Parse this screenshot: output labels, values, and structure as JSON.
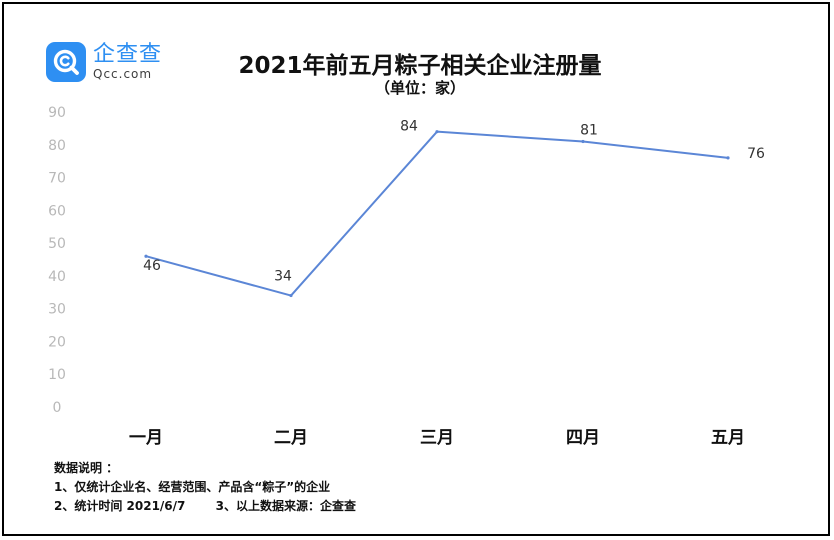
{
  "logo": {
    "name_cn": "企查查",
    "name_en": "Qcc.com",
    "brand_color": "#2e8ff2"
  },
  "chart_data": {
    "type": "line",
    "title": "2021年前五月粽子相关企业注册量",
    "subtitle": "（单位：家）",
    "categories": [
      "一月",
      "二月",
      "三月",
      "四月",
      "五月"
    ],
    "series": [
      {
        "values": [
          46,
          34,
          84,
          81,
          76
        ],
        "color": "#5b86d6"
      }
    ],
    "data_labels": [
      "46",
      "34",
      "84",
      "81",
      "76"
    ],
    "yticks": [
      "0",
      "10",
      "20",
      "30",
      "40",
      "50",
      "60",
      "70",
      "80",
      "90"
    ],
    "ylim": [
      0,
      90
    ],
    "grid": false,
    "legend": "none"
  },
  "notes": {
    "heading": "数据说明 ：",
    "line1": "1、仅统计企业名、经营范围、产品含“粽子”的企业",
    "line2a": "2、统计时间  2021/6/7",
    "line2b": "3、以上数据来源：企查查"
  }
}
